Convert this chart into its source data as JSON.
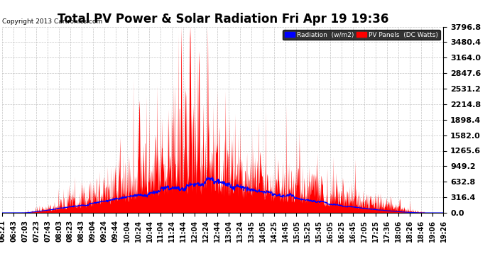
{
  "title": "Total PV Power & Solar Radiation Fri Apr 19 19:36",
  "copyright": "Copyright 2013 Cartronics.com",
  "ymax": 3796.8,
  "ymin": 0.0,
  "yticks": [
    0.0,
    316.4,
    632.8,
    949.2,
    1265.6,
    1582.0,
    1898.4,
    2214.8,
    2531.2,
    2847.6,
    3164.0,
    3480.4,
    3796.8
  ],
  "xtick_labels": [
    "06:21",
    "06:43",
    "07:03",
    "07:23",
    "07:43",
    "08:03",
    "08:23",
    "08:43",
    "09:04",
    "09:24",
    "09:44",
    "10:04",
    "10:24",
    "10:44",
    "11:04",
    "11:24",
    "11:44",
    "12:04",
    "12:24",
    "12:44",
    "13:04",
    "13:24",
    "13:45",
    "14:05",
    "14:25",
    "14:45",
    "15:05",
    "15:25",
    "15:45",
    "16:05",
    "16:25",
    "16:45",
    "17:05",
    "17:25",
    "17:36",
    "18:06",
    "18:26",
    "18:46",
    "19:06",
    "19:26"
  ],
  "legend_radiation_color": "#0000ff",
  "legend_pv_color": "#ff0000",
  "background_color": "#ffffff",
  "plot_bg_color": "#ffffff",
  "grid_color": "#aaaaaa",
  "title_fontsize": 12,
  "ylabel_fontsize": 8,
  "xlabel_fontsize": 7
}
